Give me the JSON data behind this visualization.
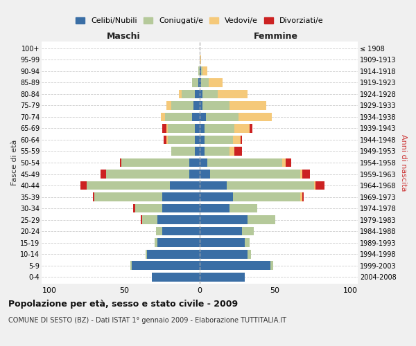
{
  "age_groups": [
    "0-4",
    "5-9",
    "10-14",
    "15-19",
    "20-24",
    "25-29",
    "30-34",
    "35-39",
    "40-44",
    "45-49",
    "50-54",
    "55-59",
    "60-64",
    "65-69",
    "70-74",
    "75-79",
    "80-84",
    "85-89",
    "90-94",
    "95-99",
    "100+"
  ],
  "birth_years": [
    "2004-2008",
    "1999-2003",
    "1994-1998",
    "1989-1993",
    "1984-1988",
    "1979-1983",
    "1974-1978",
    "1969-1973",
    "1964-1968",
    "1959-1963",
    "1954-1958",
    "1949-1953",
    "1944-1948",
    "1939-1943",
    "1934-1938",
    "1929-1933",
    "1924-1928",
    "1919-1923",
    "1914-1918",
    "1909-1913",
    "≤ 1908"
  ],
  "colors": {
    "celibi": "#3a6ea5",
    "coniugati": "#b5c99a",
    "vedovi": "#f5c97a",
    "divorziati": "#cc2222"
  },
  "maschi": {
    "celibi": [
      32,
      45,
      35,
      28,
      25,
      28,
      25,
      25,
      20,
      7,
      7,
      3,
      3,
      3,
      5,
      4,
      3,
      1,
      0,
      0,
      0
    ],
    "coniugati": [
      0,
      1,
      1,
      2,
      4,
      10,
      18,
      45,
      55,
      55,
      45,
      16,
      18,
      18,
      18,
      15,
      9,
      4,
      1,
      0,
      0
    ],
    "vedovi": [
      0,
      0,
      0,
      0,
      0,
      0,
      0,
      0,
      0,
      0,
      0,
      0,
      1,
      1,
      3,
      3,
      2,
      0,
      0,
      0,
      0
    ],
    "divorziati": [
      0,
      0,
      0,
      0,
      0,
      1,
      1,
      1,
      4,
      4,
      1,
      0,
      2,
      3,
      0,
      0,
      0,
      0,
      0,
      0,
      0
    ]
  },
  "femmine": {
    "celibi": [
      30,
      47,
      32,
      30,
      28,
      32,
      20,
      22,
      18,
      7,
      5,
      3,
      3,
      3,
      4,
      2,
      2,
      1,
      1,
      0,
      0
    ],
    "coniugati": [
      0,
      2,
      2,
      3,
      8,
      18,
      18,
      45,
      58,
      60,
      50,
      17,
      19,
      20,
      22,
      18,
      10,
      5,
      1,
      0,
      0
    ],
    "vedovi": [
      0,
      0,
      0,
      0,
      0,
      0,
      0,
      1,
      1,
      1,
      2,
      3,
      5,
      10,
      22,
      24,
      20,
      9,
      3,
      1,
      0
    ],
    "divorziati": [
      0,
      0,
      0,
      0,
      0,
      0,
      0,
      1,
      6,
      5,
      4,
      5,
      1,
      2,
      0,
      0,
      0,
      0,
      0,
      0,
      0
    ]
  },
  "xlim": 105,
  "xticks": [
    -100,
    -50,
    0,
    50,
    100
  ],
  "xtick_labels": [
    "100",
    "50",
    "0",
    "50",
    "100"
  ],
  "title": "Popolazione per età, sesso e stato civile - 2009",
  "subtitle": "COMUNE DI SESTO (BZ) - Dati ISTAT 1° gennaio 2009 - Elaborazione TUTTITALIA.IT",
  "label_maschi": "Maschi",
  "label_femmine": "Femmine",
  "ylabel_left": "Fasce di età",
  "ylabel_right": "Anni di nascita",
  "legend_labels": [
    "Celibi/Nubili",
    "Coniugati/e",
    "Vedovi/e",
    "Divorziati/e"
  ],
  "bg_color": "#f0f0f0",
  "plot_bg_color": "#ffffff",
  "grid_color": "#cccccc",
  "bar_height": 0.78
}
